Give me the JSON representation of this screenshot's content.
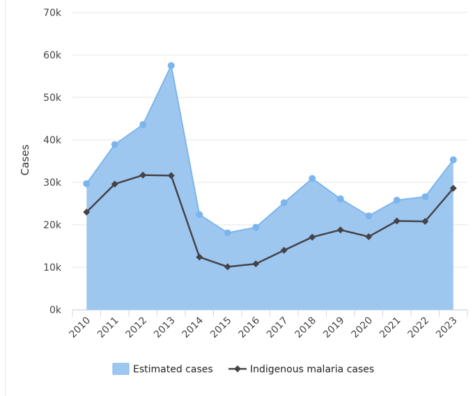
{
  "chart_data": {
    "type": "area",
    "categories": [
      "2010",
      "2011",
      "2012",
      "2013",
      "2014",
      "2015",
      "2016",
      "2017",
      "2018",
      "2019",
      "2020",
      "2021",
      "2022",
      "2023"
    ],
    "series": [
      {
        "name": "Estimated cases",
        "type": "area",
        "values": [
          29700,
          38900,
          43600,
          57500,
          22400,
          18100,
          19400,
          25200,
          30900,
          26100,
          22100,
          25800,
          26600,
          35300
        ],
        "color": "#7cb5ec",
        "fill": "#9ec7f0"
      },
      {
        "name": "Indigenous malaria cases",
        "type": "line",
        "values": [
          23000,
          29600,
          31700,
          31600,
          12400,
          10100,
          10800,
          14000,
          17100,
          18800,
          17200,
          20900,
          20800,
          28600
        ],
        "color": "#434348"
      }
    ],
    "ylabel": "Cases",
    "ylim": [
      0,
      70000
    ],
    "yticks": [
      "0k",
      "10k",
      "20k",
      "30k",
      "40k",
      "50k",
      "60k",
      "70k"
    ],
    "grid": true,
    "legend_position": "bottom-center"
  }
}
